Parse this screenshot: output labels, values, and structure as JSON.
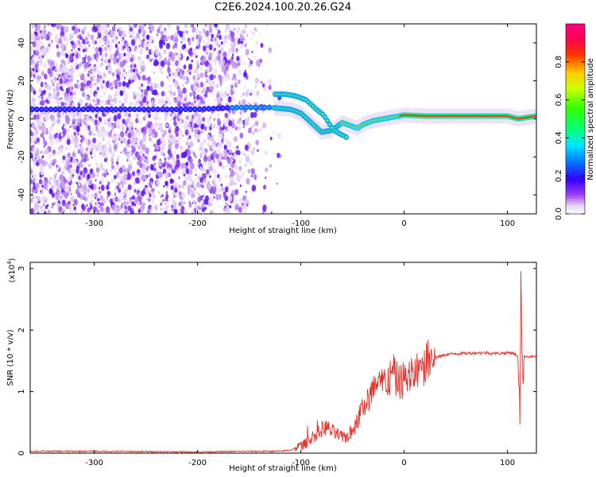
{
  "title": "C2E6.2024.100.20.26.G24",
  "chart_data": [
    {
      "type": "heatmap",
      "xlabel": "Height of straight line (km)",
      "ylabel": "Frequency (Hz)",
      "xlim": [
        -362,
        128
      ],
      "ylim": [
        -50,
        50
      ],
      "xticks": [
        -300,
        -200,
        -100,
        0,
        100
      ],
      "yticks": [
        -40,
        -20,
        0,
        20,
        40
      ],
      "colorbar": {
        "label": "Normalized spectral amplitude",
        "range": [
          0,
          1
        ],
        "ticks": [
          0.0,
          0.2,
          0.4,
          0.6,
          0.8
        ],
        "colormap": "rainbow (white-violet-blue-cyan-green-yellow-red-magenta)"
      },
      "ridge": {
        "note": "main Doppler-shifted carrier trace",
        "x": [
          -360,
          -300,
          -200,
          -160,
          -130,
          -110,
          -100,
          -90,
          -80,
          -70,
          -60,
          -50,
          -45,
          -40,
          -30,
          -20,
          -10,
          0,
          20,
          60,
          100,
          110,
          128
        ],
        "y": [
          5,
          5,
          5,
          6,
          6,
          5,
          3,
          -2,
          -7,
          -6,
          -2,
          -4,
          -5,
          -3,
          -1,
          0,
          1,
          2,
          1.5,
          1.5,
          1.5,
          0,
          1.5
        ]
      },
      "secondary_ridge": {
        "x": [
          -125,
          -115,
          -105,
          -95,
          -85,
          -78,
          -72,
          -68,
          -62,
          -58,
          -55
        ],
        "y": [
          13,
          13,
          12,
          10,
          5,
          2,
          -3,
          -6,
          -8,
          -9,
          -10
        ]
      }
    },
    {
      "type": "line",
      "xlabel": "Height of straight line (km)",
      "ylabel": "SNR (10 * v/v)",
      "y_multiplier": "(x10",
      "y_multiplier_exp": "4",
      "xlim": [
        -362,
        128
      ],
      "ylim": [
        0,
        3.1
      ],
      "xticks": [
        -300,
        -200,
        -100,
        0,
        100
      ],
      "yticks": [
        0,
        1,
        2,
        3
      ],
      "color": "#e8302a",
      "series": [
        {
          "x": [
            -362,
            -300,
            -200,
            -150,
            -120,
            -110,
            -100,
            -95,
            -90,
            -85,
            -80,
            -75,
            -70,
            -65,
            -60,
            -55,
            -50,
            -45,
            -40,
            -35,
            -30,
            -25,
            -20,
            -15,
            -10,
            -5,
            0,
            5,
            10,
            15,
            20,
            25,
            30,
            40,
            50,
            60,
            70,
            80,
            90,
            100,
            105,
            108,
            110,
            111,
            112,
            113,
            114,
            115,
            116,
            118,
            120,
            128
          ],
          "y": [
            0.03,
            0.03,
            0.02,
            0.03,
            0.03,
            0.05,
            0.12,
            0.16,
            0.25,
            0.3,
            0.38,
            0.42,
            0.35,
            0.3,
            0.25,
            0.28,
            0.35,
            0.55,
            0.75,
            0.85,
            1.05,
            1.05,
            1.15,
            1.2,
            1.25,
            1.15,
            1.2,
            1.25,
            1.3,
            1.35,
            1.45,
            1.5,
            1.55,
            1.6,
            1.62,
            1.62,
            1.63,
            1.63,
            1.62,
            1.63,
            1.63,
            1.6,
            1.55,
            1.2,
            0.6,
            3.0,
            1.8,
            1.2,
            1.5,
            1.58,
            1.57,
            1.57
          ]
        }
      ]
    }
  ]
}
